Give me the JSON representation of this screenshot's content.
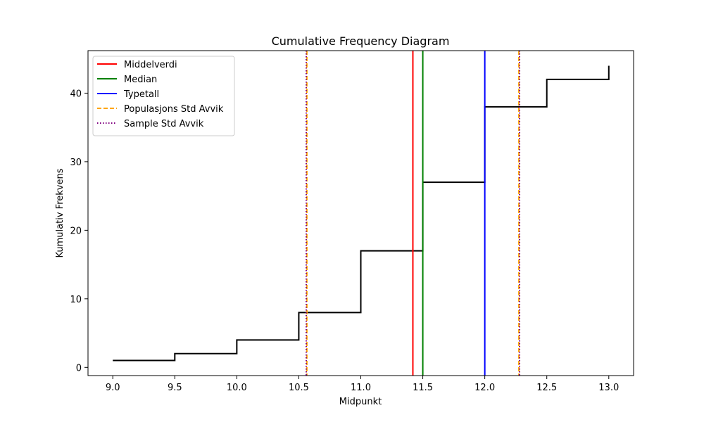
{
  "chart_data": {
    "type": "line",
    "title": "Cumulative Frequency Diagram",
    "xlabel": "Midpunkt",
    "ylabel": "Kumulativ Frekvens",
    "xlim": [
      8.8,
      13.2
    ],
    "ylim": [
      -1.2,
      46.2
    ],
    "xticks": [
      9.0,
      9.5,
      10.0,
      10.5,
      11.0,
      11.5,
      12.0,
      12.5,
      13.0
    ],
    "yticks": [
      0,
      10,
      20,
      30,
      40
    ],
    "grid": false,
    "legend_position": "upper-left",
    "series": [
      {
        "type": "step",
        "color": "#000000",
        "x": [
          9.0,
          9.5,
          10.0,
          10.5,
          11.0,
          11.5,
          12.0,
          12.5,
          13.0
        ],
        "y": [
          1,
          2,
          4,
          8,
          17,
          27,
          38,
          42,
          44
        ]
      }
    ],
    "vlines": [
      {
        "name": "Middelverdi",
        "x": 11.42,
        "color": "#ff0000",
        "style": "solid"
      },
      {
        "name": "Median",
        "x": 11.5,
        "color": "#008000",
        "style": "solid"
      },
      {
        "name": "Typetall",
        "x": 12.0,
        "color": "#0000ff",
        "style": "solid"
      },
      {
        "name": "Populasjons Std Avvik",
        "x": [
          10.565,
          12.275
        ],
        "color": "#ffa500",
        "style": "dashed"
      },
      {
        "name": "Sample Std Avvik",
        "x": [
          10.56,
          12.28
        ],
        "color": "#800080",
        "style": "dotted"
      }
    ],
    "legend": [
      "Middelverdi",
      "Median",
      "Typetall",
      "Populasjons Std Avvik",
      "Sample Std Avvik"
    ]
  }
}
